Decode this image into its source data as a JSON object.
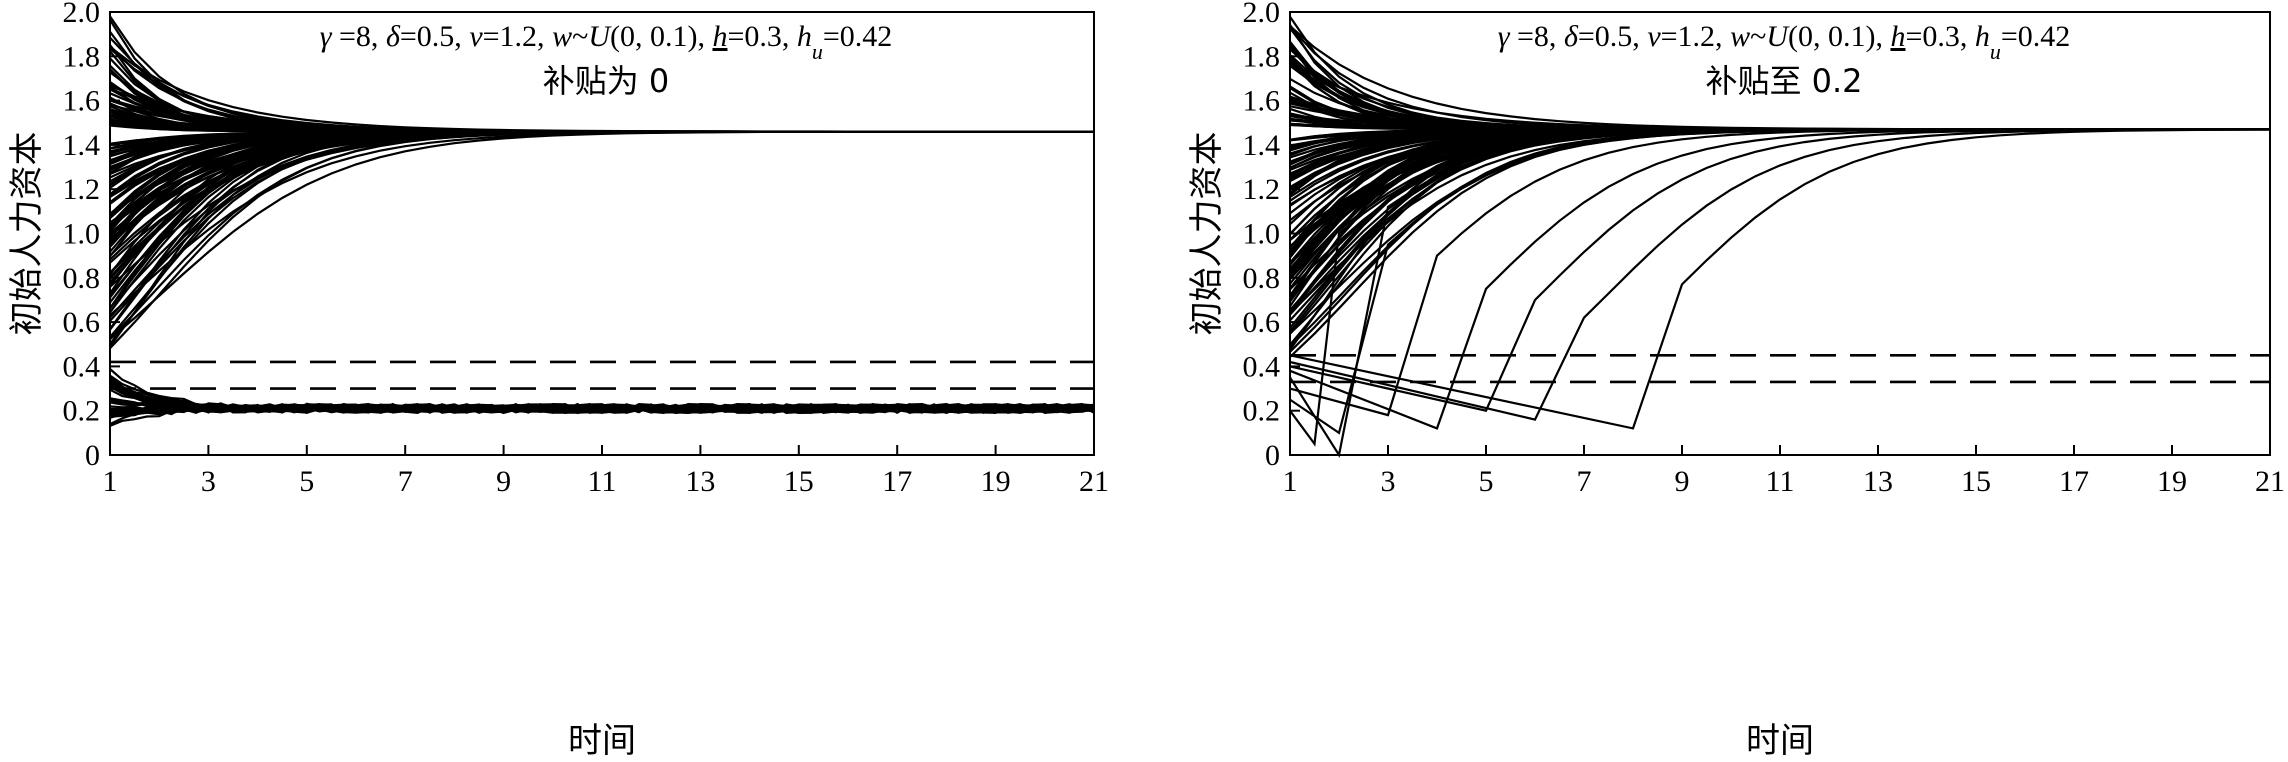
{
  "chart_data": [
    {
      "type": "line",
      "subtitle": "补贴为 0",
      "annotation": "γ =8, δ=0.5, v=1.2, w~U(0, 0.1), h=0.3, h_u=0.42",
      "xlabel": "时间",
      "ylabel": "初始人力资本",
      "xlim": [
        1,
        21
      ],
      "ylim": [
        0,
        2.0
      ],
      "xticks": [
        "1",
        "3",
        "5",
        "7",
        "9",
        "11",
        "13",
        "15",
        "17",
        "19",
        "21"
      ],
      "yticks": [
        "0",
        "0.2",
        "0.4",
        "0.6",
        "0.8",
        "1.0",
        "1.2",
        "1.4",
        "1.6",
        "1.8",
        "2.0"
      ],
      "thresholds": [
        0.42,
        0.3
      ],
      "steady_state_high": 1.46,
      "steady_state_low": 0.21,
      "subsidy": 0
    },
    {
      "type": "line",
      "subtitle": "补贴至 0.2",
      "annotation": "γ =8, δ=0.5, v=1.2, w~U(0, 0.1), h=0.3, h_u=0.42",
      "xlabel": "时间",
      "ylabel": "初始人力资本",
      "xlim": [
        1,
        21
      ],
      "ylim": [
        0,
        2.0
      ],
      "xticks": [
        "1",
        "3",
        "5",
        "7",
        "9",
        "11",
        "13",
        "15",
        "17",
        "19",
        "21"
      ],
      "yticks": [
        "0",
        "0.2",
        "0.4",
        "0.6",
        "0.8",
        "1.0",
        "1.2",
        "1.4",
        "1.6",
        "1.8",
        "2.0"
      ],
      "thresholds": [
        0.45,
        0.33
      ],
      "steady_state_high": 1.47,
      "subsidy": 0.2
    }
  ]
}
